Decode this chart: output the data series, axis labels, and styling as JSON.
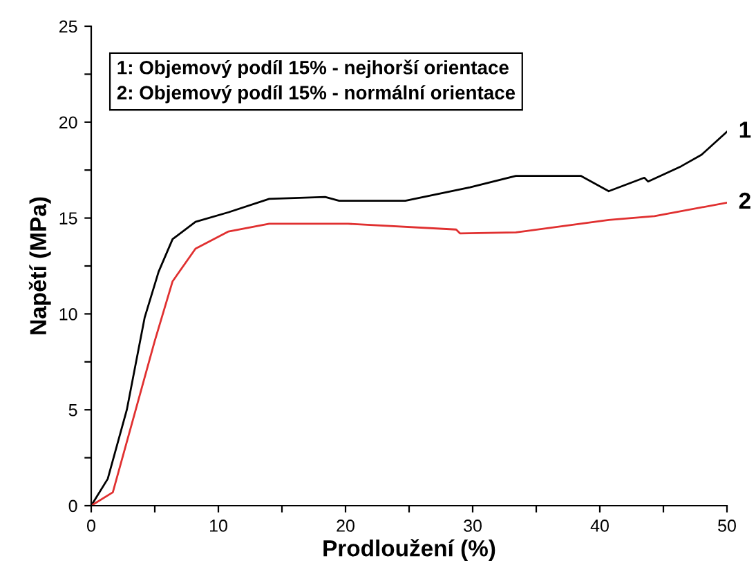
{
  "chart_data": {
    "type": "line",
    "xlabel": "Prodloužení (%)",
    "ylabel": "Napětí (MPa)",
    "xlim": [
      0,
      50
    ],
    "ylim": [
      0,
      25
    ],
    "xticks": [
      0,
      {
        "value": 5,
        "label": null
      },
      10,
      {
        "value": 15,
        "label": null
      },
      20,
      {
        "value": 25,
        "label": null
      },
      30,
      {
        "value": 35,
        "label": null
      },
      40,
      {
        "value": 45,
        "label": null
      },
      50
    ],
    "yticks": [
      0,
      {
        "value": 2.5,
        "label": null
      },
      5,
      {
        "value": 7.5,
        "label": null
      },
      10,
      {
        "value": 12.5,
        "label": null
      },
      15,
      {
        "value": 17.5,
        "label": null
      },
      20,
      {
        "value": 22.5,
        "label": null
      },
      25
    ],
    "grid": false,
    "legend": false,
    "line_style": "solid",
    "marker": "none",
    "series": [
      {
        "name": "1",
        "color": "#000000",
        "x": [
          0,
          1.3,
          2.8,
          4.2,
          5.3,
          6.4,
          8.2,
          10.8,
          14.0,
          18.4,
          19.5,
          24.7,
          29.8,
          33.4,
          38.5,
          40.7,
          43.5,
          43.8,
          46.4,
          48,
          50
        ],
        "values": [
          0,
          1.4,
          5.0,
          9.8,
          12.2,
          13.9,
          14.8,
          15.3,
          16.0,
          16.1,
          15.9,
          15.9,
          16.6,
          17.2,
          17.2,
          16.4,
          17.1,
          16.9,
          17.7,
          18.3,
          19.5
        ]
      },
      {
        "name": "2",
        "color": "#e03030",
        "x": [
          0,
          1.7,
          3.5,
          5.0,
          6.4,
          8.2,
          10.8,
          14.0,
          20.2,
          28.7,
          29.0,
          33.4,
          40.7,
          44.3,
          50
        ],
        "values": [
          0,
          0.7,
          5.0,
          8.6,
          11.7,
          13.4,
          14.3,
          14.7,
          14.7,
          14.4,
          14.2,
          14.25,
          14.9,
          15.1,
          15.8
        ]
      }
    ],
    "annotations": [
      "1: Objemový podíl 15% - nejhorší orientace",
      "2: Objemový podíl 15% - normální orientace"
    ]
  }
}
